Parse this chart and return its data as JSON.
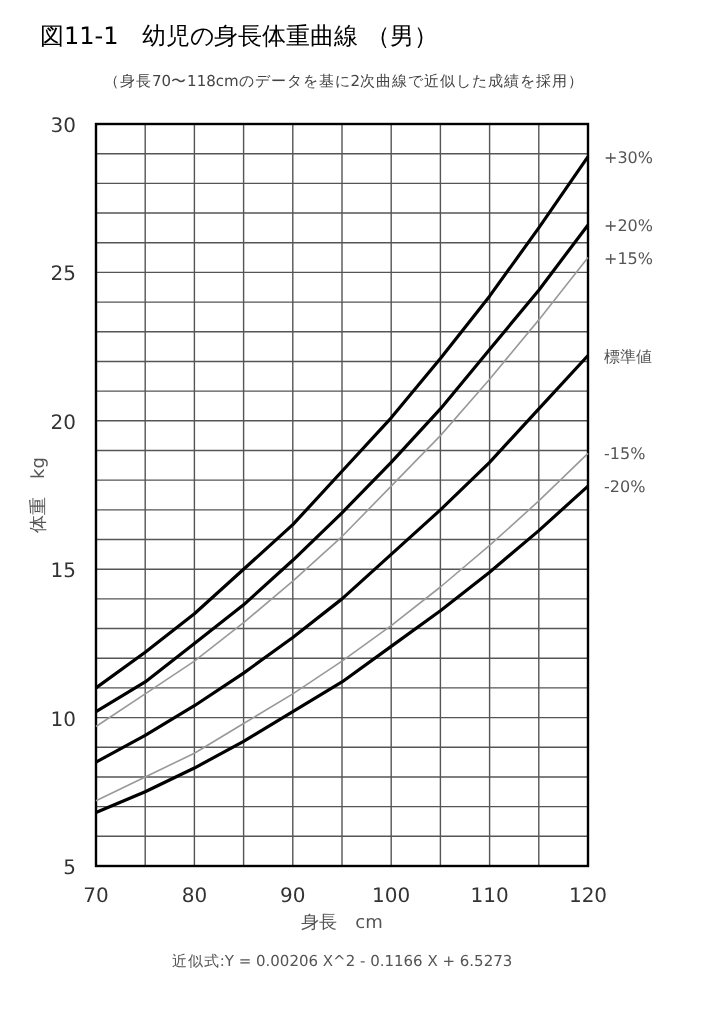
{
  "chart_data": {
    "type": "line",
    "title": "図11-1　幼児の身長体重曲線 （男）",
    "subtitle": "（身長70〜118cmのデータを基に2次曲線で近似した成績を採用）",
    "xlabel": "身長　cm",
    "ylabel": "体重　kg",
    "annotations": [
      "近似式:Y = 0.00206 X^2 - 0.1166 X + 6.5273"
    ],
    "x": [
      70,
      75,
      80,
      85,
      90,
      95,
      100,
      105,
      110,
      115,
      120
    ],
    "series": [
      {
        "name": "+30%",
        "color": "#000000",
        "values": [
          11.0,
          12.2,
          13.5,
          15.0,
          16.5,
          18.3,
          20.1,
          22.1,
          24.2,
          26.5,
          28.9
        ]
      },
      {
        "name": "+20%",
        "color": "#000000",
        "values": [
          10.2,
          11.2,
          12.5,
          13.8,
          15.3,
          16.9,
          18.6,
          20.4,
          22.4,
          24.4,
          26.6
        ]
      },
      {
        "name": "+15%",
        "color": "#999999",
        "values": [
          9.7,
          10.8,
          11.9,
          13.2,
          14.6,
          16.1,
          17.8,
          19.5,
          21.4,
          23.4,
          25.5
        ]
      },
      {
        "name": "標準値",
        "color": "#000000",
        "values": [
          8.5,
          9.4,
          10.4,
          11.5,
          12.7,
          14.0,
          15.5,
          17.0,
          18.6,
          20.4,
          22.2
        ]
      },
      {
        "name": "-15%",
        "color": "#999999",
        "values": [
          7.2,
          8.0,
          8.8,
          9.8,
          10.8,
          11.9,
          13.1,
          14.4,
          15.8,
          17.3,
          18.9
        ]
      },
      {
        "name": "-20%",
        "color": "#000000",
        "values": [
          6.8,
          7.5,
          8.3,
          9.2,
          10.2,
          11.2,
          12.4,
          13.6,
          14.9,
          16.3,
          17.8
        ]
      }
    ],
    "xlim": [
      70,
      120
    ],
    "ylim": [
      5,
      30
    ],
    "xticks": [
      70,
      {
        "value": 75,
        "label": null
      },
      80,
      {
        "value": 85,
        "label": null
      },
      90,
      {
        "value": 95,
        "label": null
      },
      100,
      {
        "value": 105,
        "label": null
      },
      110,
      {
        "value": 115,
        "label": null
      },
      120
    ],
    "yticks": [
      5,
      {
        "value": 6,
        "label": null
      },
      {
        "value": 7,
        "label": null
      },
      {
        "value": 8,
        "label": null
      },
      {
        "value": 9,
        "label": null
      },
      10,
      {
        "value": 11,
        "label": null
      },
      {
        "value": 12,
        "label": null
      },
      {
        "value": 13,
        "label": null
      },
      {
        "value": 14,
        "label": null
      },
      15,
      {
        "value": 16,
        "label": null
      },
      {
        "value": 17,
        "label": null
      },
      {
        "value": 18,
        "label": null
      },
      {
        "value": 19,
        "label": null
      },
      20,
      {
        "value": 21,
        "label": null
      },
      {
        "value": 22,
        "label": null
      },
      {
        "value": 23,
        "label": null
      },
      {
        "value": 24,
        "label": null
      },
      25,
      {
        "value": 26,
        "label": null
      },
      {
        "value": 27,
        "label": null
      },
      {
        "value": 28,
        "label": null
      },
      {
        "value": 29,
        "label": null
      },
      30
    ],
    "grid": true,
    "legend": false,
    "marker": "none",
    "line_style": "solid"
  }
}
